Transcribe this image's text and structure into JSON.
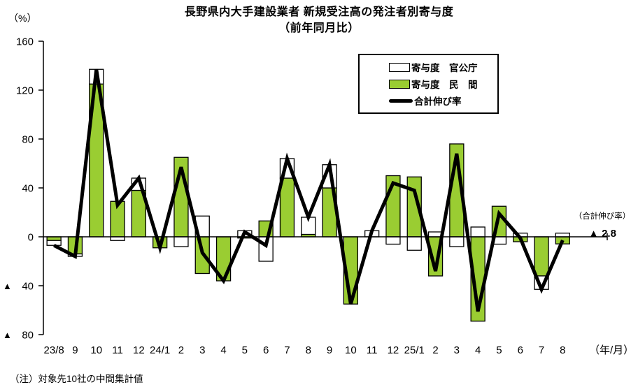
{
  "title": {
    "line1": "長野県内大手建設業者 新規受注高の発注者別寄与度",
    "line2": "（前年同月比）"
  },
  "y_axis": {
    "unit": "（%）",
    "ticks": [
      {
        "label": "160",
        "value": 160,
        "negative": false
      },
      {
        "label": "120",
        "value": 120,
        "negative": false
      },
      {
        "label": "80",
        "value": 80,
        "negative": false
      },
      {
        "label": "40",
        "value": 40,
        "negative": false
      },
      {
        "label": "0",
        "value": 0,
        "negative": false
      },
      {
        "label": "40",
        "value": -40,
        "negative": true
      },
      {
        "label": "80",
        "value": -80,
        "negative": true
      }
    ]
  },
  "x_axis": {
    "unit": "（年/月）"
  },
  "legend": {
    "items": [
      {
        "label": "寄与度　官公庁"
      },
      {
        "label": "寄与度　民　間"
      },
      {
        "label": "合計伸び率"
      }
    ]
  },
  "annotation": {
    "label": "（合計伸び率）",
    "value": "▲ 2.8"
  },
  "footnote": "（注）対象先10社の中間集計値",
  "colors": {
    "private_bar": "#9ACD32",
    "government_bar": "#FFFFFF",
    "total_line": "#000000"
  },
  "chart_data": {
    "type": "bar",
    "subtype": "stacked contribution bars (government/private) with total growth-rate line overlay",
    "title": "長野県内大手建設業者 新規受注高の発注者別寄与度（前年同月比）",
    "ylabel": "（%）",
    "xlabel": "（年/月）",
    "ylim": [
      -80,
      160
    ],
    "ytick_step": 40,
    "grid": false,
    "legend_position": "inside upper right",
    "negative_notation": "▲ means minus",
    "categories": [
      "23/8",
      "9",
      "10",
      "11",
      "12",
      "24/1",
      "2",
      "3",
      "4",
      "5",
      "6",
      "7",
      "8",
      "9",
      "10",
      "11",
      "12",
      "25/1",
      "2",
      "3",
      "4",
      "5",
      "6",
      "7",
      "8"
    ],
    "series": [
      {
        "name": "寄与度 官公庁",
        "type": "bar",
        "color": "#FFFFFF",
        "values": [
          -4,
          -2,
          12,
          -3,
          10,
          0,
          -8,
          17,
          0,
          5,
          -20,
          16,
          14,
          19,
          0,
          5,
          -6,
          -11,
          4,
          -8,
          8,
          -6,
          3,
          -11,
          3
        ]
      },
      {
        "name": "寄与度 民間",
        "type": "bar",
        "color": "#9ACD32",
        "values": [
          -3,
          -14,
          125,
          29,
          38,
          -9,
          65,
          -30,
          -36,
          -1,
          13,
          48,
          2,
          40,
          -55,
          0,
          50,
          49,
          -32,
          76,
          -69,
          25,
          -4,
          -32,
          -5.8
        ]
      },
      {
        "name": "合計伸び率",
        "type": "line",
        "color": "#000000",
        "values": [
          -7,
          -16,
          137,
          26,
          48,
          -9,
          57,
          -13,
          -36,
          4,
          -7,
          64,
          16,
          59,
          -55,
          5,
          44,
          38,
          -28,
          68,
          -61,
          19,
          -1,
          -43,
          -2.8
        ]
      }
    ],
    "last_value_annotation": "▲ 2.8"
  }
}
